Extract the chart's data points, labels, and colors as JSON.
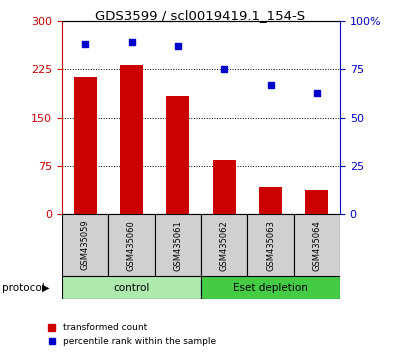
{
  "title": "GDS3599 / scl0019419.1_154-S",
  "categories": [
    "GSM435059",
    "GSM435060",
    "GSM435061",
    "GSM435062",
    "GSM435063",
    "GSM435064"
  ],
  "red_values": [
    213,
    232,
    183,
    85,
    42,
    38
  ],
  "blue_values": [
    88,
    89,
    87,
    75,
    67,
    63
  ],
  "red_ylim": [
    0,
    300
  ],
  "blue_ylim": [
    0,
    100
  ],
  "red_yticks": [
    0,
    75,
    150,
    225,
    300
  ],
  "blue_yticks": [
    0,
    25,
    50,
    75,
    100
  ],
  "blue_yticklabels": [
    "0",
    "25",
    "50",
    "75",
    "100%"
  ],
  "red_color": "#cc0000",
  "blue_color": "#0000cc",
  "grid_lines": [
    75,
    150,
    225
  ],
  "protocol_groups": [
    {
      "label": "control",
      "start": 0,
      "end": 3,
      "color": "#aeeaae"
    },
    {
      "label": "Eset depletion",
      "start": 3,
      "end": 6,
      "color": "#44cc44"
    }
  ],
  "protocol_label": "protocol",
  "legend_items": [
    {
      "color": "#cc0000",
      "label": "transformed count"
    },
    {
      "color": "#0000cc",
      "label": "percentile rank within the sample"
    }
  ],
  "bar_width": 0.5
}
